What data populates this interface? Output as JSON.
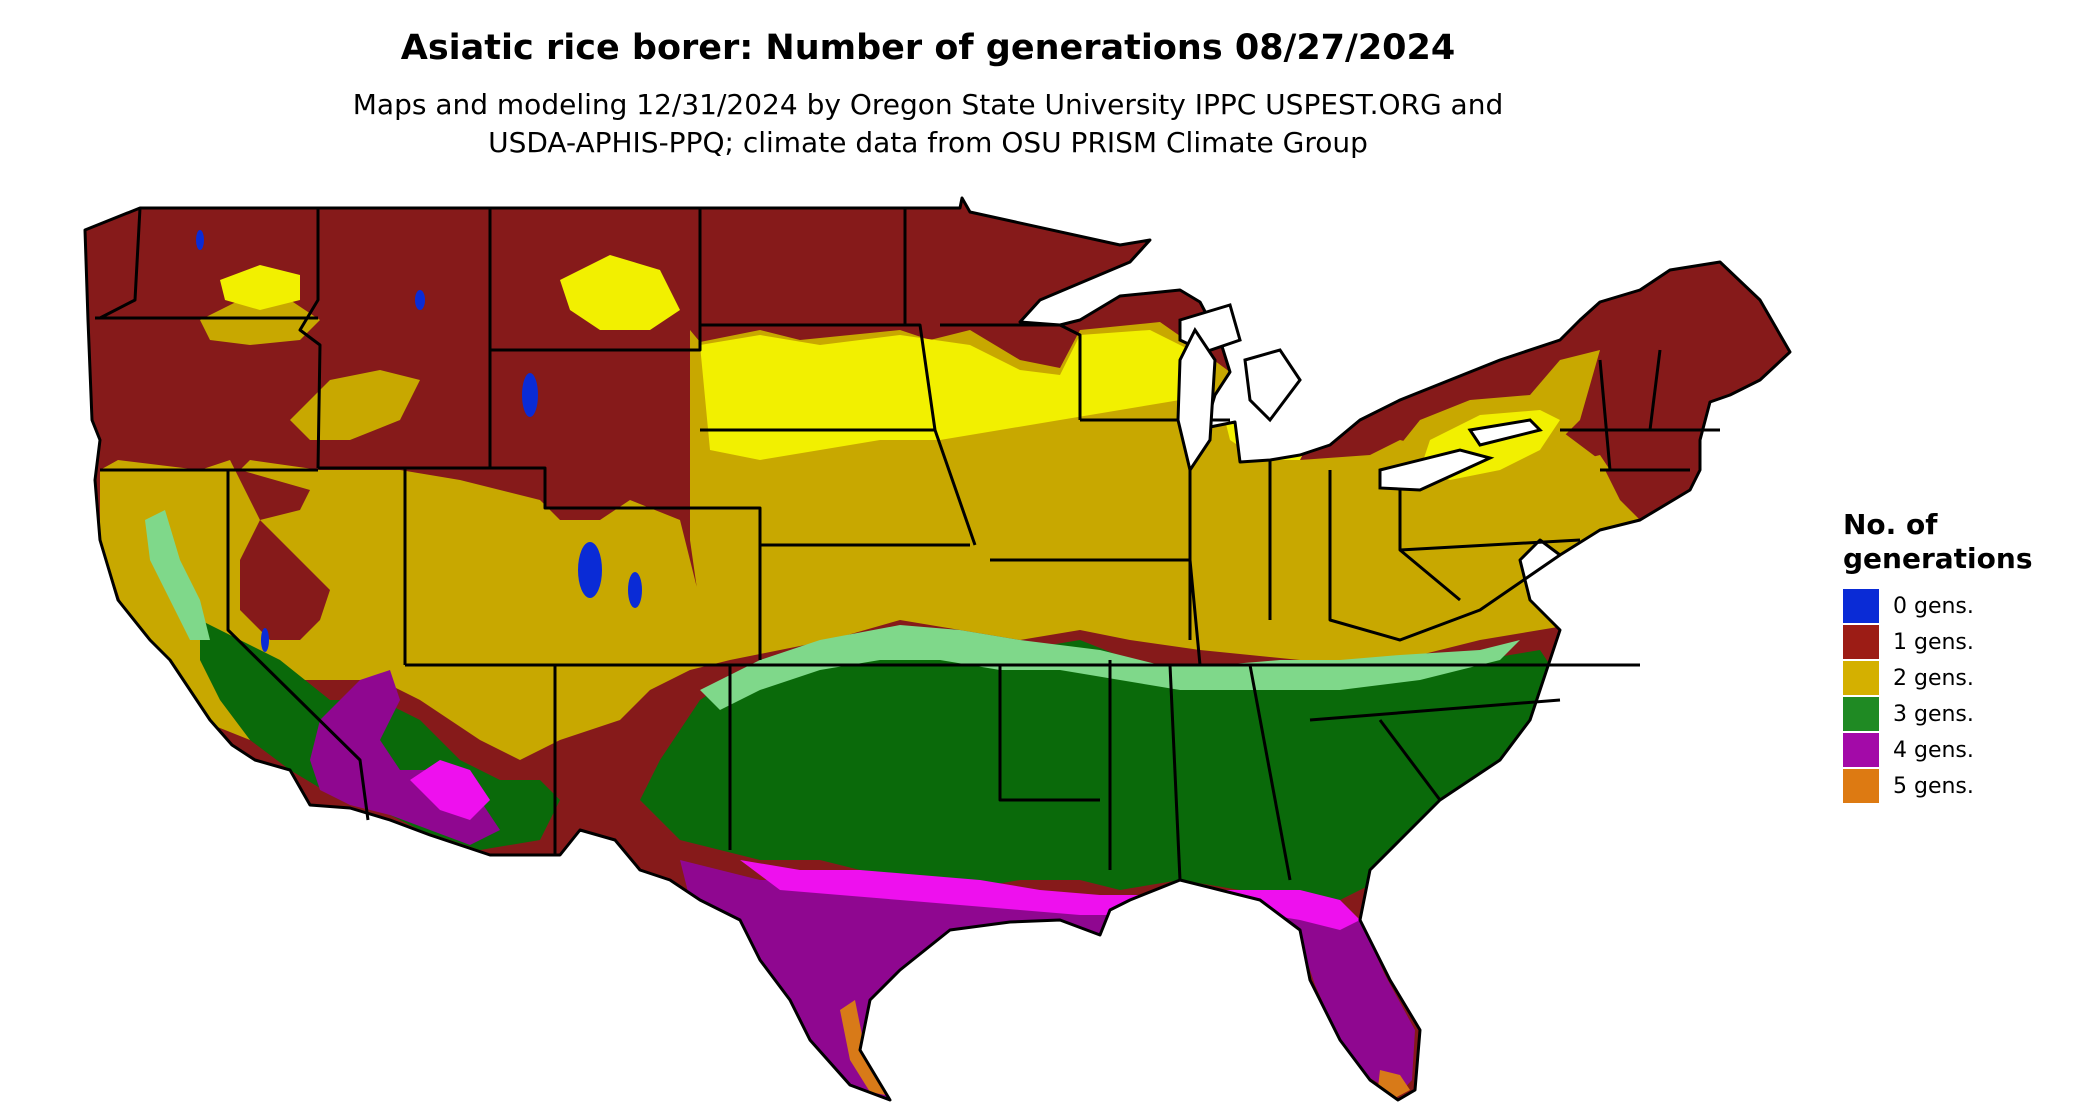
{
  "title": "Asiatic rice borer: Number of generations 08/27/2024",
  "subtitle_line1": "Maps and modeling 12/31/2024 by Oregon State University IPPC USPEST.ORG and",
  "subtitle_line2": "USDA-APHIS-PPQ; climate data from OSU PRISM Climate Group",
  "legend": {
    "title_line1": "No. of",
    "title_line2": "generations",
    "items": [
      {
        "label": "0 gens.",
        "color": "#0a2bd6"
      },
      {
        "label": "1 gens.",
        "color": "#9c1c15"
      },
      {
        "label": "2 gens.",
        "color": "#d4b000"
      },
      {
        "label": "3 gens.",
        "color": "#1f8a23"
      },
      {
        "label": "4 gens.",
        "color": "#a30aa8"
      },
      {
        "label": "5 gens.",
        "color": "#dd7a12"
      }
    ]
  },
  "map_colors": {
    "gen0": "#0a2bd6",
    "gen1": "#861a1a",
    "gen2": "#c8a800",
    "gen2_light": "#f2f000",
    "gen3": "#0a6a0a",
    "gen3_light": "#7fd88a",
    "gen4": "#8f0790",
    "gen4_light": "#ee10ee",
    "gen5": "#d87a18",
    "gen1_accent": "#e0401a"
  }
}
